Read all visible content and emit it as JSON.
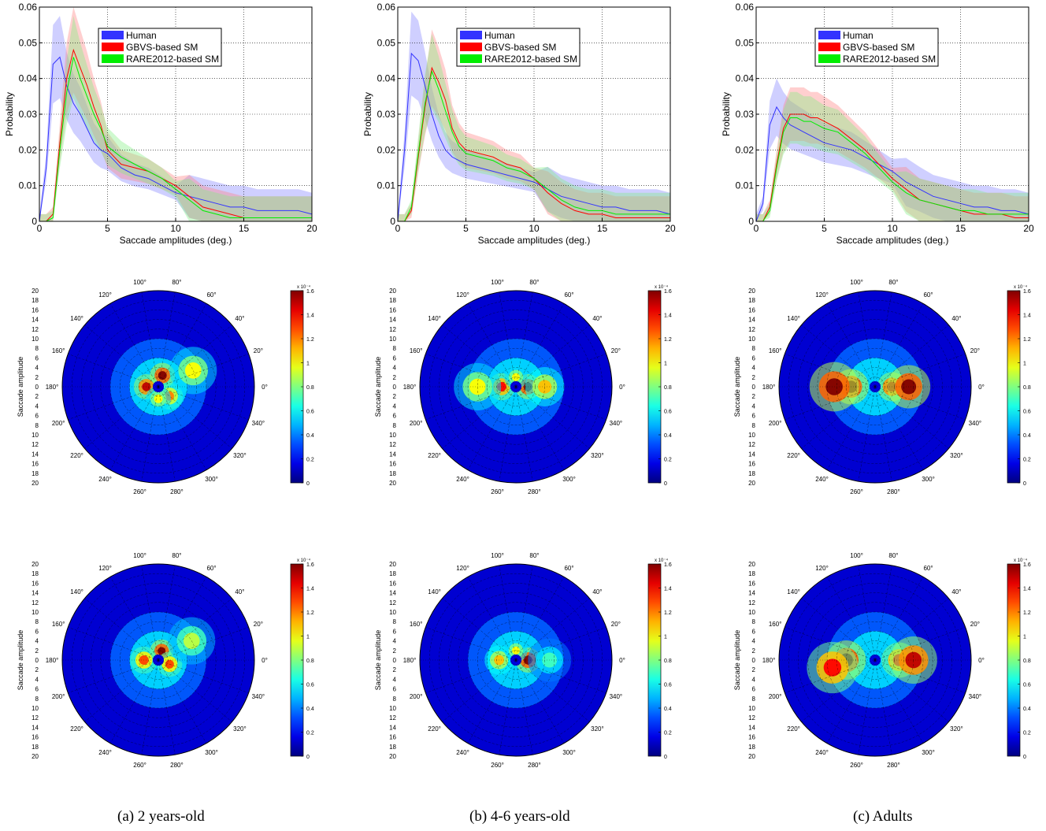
{
  "colors": {
    "human": "#3333ff",
    "human_fill": "#8080ff",
    "gbvs": "#ff0000",
    "gbvs_fill": "#ff8080",
    "rare": "#00ee00",
    "rare_fill": "#80ee80"
  },
  "histograms": {
    "ylabel": "Probability",
    "xlabel": "Saccade amplitudes (deg.)",
    "yticks": [
      "0",
      "0.01",
      "0.02",
      "0.03",
      "0.04",
      "0.05",
      "0.06"
    ],
    "xticks": [
      "0",
      "5",
      "10",
      "15",
      "20"
    ],
    "legend": [
      "Human",
      "GBVS-based SM",
      "RARE2012-based SM"
    ]
  },
  "polar": {
    "ylabel": "Saccade amplitude",
    "radial_ticks": [
      "20",
      "18",
      "16",
      "14",
      "12",
      "10",
      "8",
      "6",
      "4",
      "2",
      "0",
      "2",
      "4",
      "6",
      "8",
      "10",
      "12",
      "14",
      "16",
      "18",
      "20"
    ],
    "angle_labels": [
      "0°",
      "20°",
      "40°",
      "60°",
      "80°",
      "100°",
      "120°",
      "140°",
      "160°",
      "180°",
      "200°",
      "220°",
      "240°",
      "260°",
      "280°",
      "300°",
      "320°",
      "340°"
    ],
    "colorbar_ticks": [
      "0",
      "0.2",
      "0.4",
      "0.6",
      "0.8",
      "1",
      "1.2",
      "1.4",
      "1.6"
    ],
    "colorbar_exponent": "x 10⁻⁴"
  },
  "captions": [
    "(a)  2 years-old",
    "(b)  4-6 years-old",
    "(c)  Adults"
  ],
  "chart_data": [
    {
      "type": "line",
      "panel": "a",
      "xlim": [
        0,
        20
      ],
      "ylim": [
        0,
        0.06
      ],
      "grid": true,
      "legend_position": "top-center",
      "x": [
        0,
        0.5,
        1,
        1.5,
        2,
        2.5,
        3,
        3.5,
        4,
        4.5,
        5,
        6,
        7,
        8,
        9,
        10,
        11,
        12,
        13,
        14,
        15,
        16,
        17,
        18,
        19,
        20
      ],
      "series": [
        {
          "name": "Human",
          "values": [
            0,
            0.015,
            0.044,
            0.046,
            0.038,
            0.033,
            0.03,
            0.026,
            0.022,
            0.02,
            0.019,
            0.015,
            0.013,
            0.012,
            0.01,
            0.008,
            0.007,
            0.006,
            0.005,
            0.004,
            0.004,
            0.003,
            0.003,
            0.003,
            0.003,
            0.002
          ]
        },
        {
          "name": "GBVS-based SM",
          "values": [
            0,
            0,
            0.002,
            0.022,
            0.04,
            0.048,
            0.043,
            0.038,
            0.032,
            0.027,
            0.02,
            0.016,
            0.015,
            0.014,
            0.012,
            0.01,
            0.007,
            0.004,
            0.003,
            0.002,
            0.001,
            0.001,
            0.001,
            0.001,
            0.001,
            0.001
          ]
        },
        {
          "name": "RARE2012-based SM",
          "values": [
            0,
            0,
            0.001,
            0.02,
            0.036,
            0.046,
            0.04,
            0.035,
            0.03,
            0.026,
            0.021,
            0.018,
            0.016,
            0.014,
            0.012,
            0.009,
            0.006,
            0.003,
            0.002,
            0.001,
            0.001,
            0.001,
            0.001,
            0.001,
            0.001,
            0.001
          ]
        }
      ]
    },
    {
      "type": "line",
      "panel": "b",
      "xlim": [
        0,
        20
      ],
      "ylim": [
        0,
        0.06
      ],
      "grid": true,
      "legend_position": "top-center",
      "x": [
        0,
        0.5,
        1,
        1.5,
        2,
        2.5,
        3,
        3.5,
        4,
        4.5,
        5,
        6,
        7,
        8,
        9,
        10,
        11,
        12,
        13,
        14,
        15,
        16,
        17,
        18,
        19,
        20
      ],
      "series": [
        {
          "name": "Human",
          "values": [
            0,
            0.02,
            0.047,
            0.045,
            0.038,
            0.03,
            0.024,
            0.02,
            0.018,
            0.017,
            0.016,
            0.015,
            0.014,
            0.013,
            0.012,
            0.011,
            0.009,
            0.007,
            0.006,
            0.005,
            0.004,
            0.004,
            0.003,
            0.003,
            0.003,
            0.002
          ]
        },
        {
          "name": "GBVS-based SM",
          "values": [
            0,
            0,
            0.003,
            0.018,
            0.032,
            0.043,
            0.039,
            0.034,
            0.026,
            0.022,
            0.02,
            0.019,
            0.018,
            0.016,
            0.015,
            0.012,
            0.008,
            0.005,
            0.003,
            0.002,
            0.002,
            0.001,
            0.001,
            0.001,
            0.001,
            0.001
          ]
        },
        {
          "name": "RARE2012-based SM",
          "values": [
            0,
            0,
            0.004,
            0.019,
            0.033,
            0.042,
            0.037,
            0.031,
            0.025,
            0.021,
            0.019,
            0.018,
            0.017,
            0.015,
            0.014,
            0.012,
            0.009,
            0.006,
            0.004,
            0.003,
            0.003,
            0.002,
            0.002,
            0.002,
            0.002,
            0.002
          ]
        }
      ]
    },
    {
      "type": "line",
      "panel": "c",
      "xlim": [
        0,
        20
      ],
      "ylim": [
        0,
        0.06
      ],
      "grid": true,
      "legend_position": "top-center",
      "x": [
        0,
        0.5,
        1,
        1.5,
        2,
        2.5,
        3,
        3.5,
        4,
        4.5,
        5,
        6,
        7,
        8,
        9,
        10,
        11,
        12,
        13,
        14,
        15,
        16,
        17,
        18,
        19,
        20
      ],
      "series": [
        {
          "name": "Human",
          "values": [
            0,
            0.005,
            0.027,
            0.032,
            0.029,
            0.027,
            0.026,
            0.025,
            0.024,
            0.023,
            0.022,
            0.021,
            0.02,
            0.018,
            0.016,
            0.014,
            0.011,
            0.009,
            0.007,
            0.006,
            0.005,
            0.004,
            0.004,
            0.003,
            0.003,
            0.002
          ]
        },
        {
          "name": "GBVS-based SM",
          "values": [
            0,
            0,
            0.004,
            0.016,
            0.026,
            0.03,
            0.03,
            0.03,
            0.029,
            0.029,
            0.028,
            0.026,
            0.023,
            0.02,
            0.016,
            0.012,
            0.009,
            0.006,
            0.005,
            0.004,
            0.003,
            0.002,
            0.002,
            0.002,
            0.001,
            0.001
          ]
        },
        {
          "name": "RARE2012-based SM",
          "values": [
            0,
            0,
            0.003,
            0.015,
            0.025,
            0.029,
            0.029,
            0.028,
            0.028,
            0.027,
            0.026,
            0.025,
            0.022,
            0.019,
            0.015,
            0.011,
            0.008,
            0.006,
            0.005,
            0.004,
            0.003,
            0.003,
            0.002,
            0.002,
            0.002,
            0.002
          ]
        }
      ]
    },
    {
      "type": "heatmap",
      "panel": "a-row2",
      "projection": "polar",
      "rlim": [
        0,
        20
      ],
      "clim": [
        0,
        1.6
      ],
      "unit_exponent": -4,
      "hotspots": [
        {
          "angle_deg": 70,
          "radius": 2.5,
          "value": 1.6
        },
        {
          "angle_deg": 180,
          "radius": 2.5,
          "value": 1.5
        },
        {
          "angle_deg": 320,
          "radius": 3.0,
          "value": 1.2
        },
        {
          "angle_deg": 270,
          "radius": 2.5,
          "value": 1.0
        },
        {
          "angle_deg": 25,
          "radius": 8.0,
          "value": 1.0
        }
      ]
    },
    {
      "type": "heatmap",
      "panel": "b-row2",
      "projection": "polar",
      "rlim": [
        0,
        20
      ],
      "clim": [
        0,
        1.6
      ],
      "unit_exponent": -4,
      "hotspots": [
        {
          "angle_deg": 0,
          "radius": 2.5,
          "value": 1.6
        },
        {
          "angle_deg": 180,
          "radius": 3.0,
          "value": 1.4
        },
        {
          "angle_deg": 0,
          "radius": 6.0,
          "value": 1.1
        },
        {
          "angle_deg": 180,
          "radius": 8.0,
          "value": 1.0
        },
        {
          "angle_deg": 90,
          "radius": 2.0,
          "value": 1.0
        }
      ]
    },
    {
      "type": "heatmap",
      "panel": "c-row2",
      "projection": "polar",
      "rlim": [
        0,
        20
      ],
      "clim": [
        0,
        1.6
      ],
      "unit_exponent": -4,
      "hotspots": [
        {
          "angle_deg": 180,
          "radius": 5.0,
          "value": 1.6
        },
        {
          "angle_deg": 180,
          "radius": 8.5,
          "value": 1.6
        },
        {
          "angle_deg": 0,
          "radius": 3.5,
          "value": 1.5
        },
        {
          "angle_deg": 0,
          "radius": 7.0,
          "value": 1.6
        }
      ]
    },
    {
      "type": "heatmap",
      "panel": "a-row3",
      "projection": "polar",
      "rlim": [
        0,
        20
      ],
      "clim": [
        0,
        1.6
      ],
      "unit_exponent": -4,
      "hotspots": [
        {
          "angle_deg": 70,
          "radius": 2.0,
          "value": 1.6
        },
        {
          "angle_deg": 180,
          "radius": 3.0,
          "value": 1.3
        },
        {
          "angle_deg": 340,
          "radius": 2.5,
          "value": 1.3
        },
        {
          "angle_deg": 30,
          "radius": 8.0,
          "value": 0.9
        }
      ]
    },
    {
      "type": "heatmap",
      "panel": "b-row3",
      "projection": "polar",
      "rlim": [
        0,
        20
      ],
      "clim": [
        0,
        1.6
      ],
      "unit_exponent": -4,
      "hotspots": [
        {
          "angle_deg": 0,
          "radius": 2.5,
          "value": 1.6
        },
        {
          "angle_deg": 180,
          "radius": 3.5,
          "value": 1.1
        },
        {
          "angle_deg": 90,
          "radius": 2.0,
          "value": 1.0
        },
        {
          "angle_deg": 0,
          "radius": 7.0,
          "value": 0.7
        }
      ]
    },
    {
      "type": "heatmap",
      "panel": "c-row3",
      "projection": "polar",
      "rlim": [
        0,
        20
      ],
      "clim": [
        0,
        1.6
      ],
      "unit_exponent": -4,
      "hotspots": [
        {
          "angle_deg": 180,
          "radius": 6.0,
          "value": 1.6
        },
        {
          "angle_deg": 190,
          "radius": 9.0,
          "value": 1.4
        },
        {
          "angle_deg": 0,
          "radius": 5.0,
          "value": 1.4
        },
        {
          "angle_deg": 0,
          "radius": 8.0,
          "value": 1.5
        }
      ]
    }
  ]
}
